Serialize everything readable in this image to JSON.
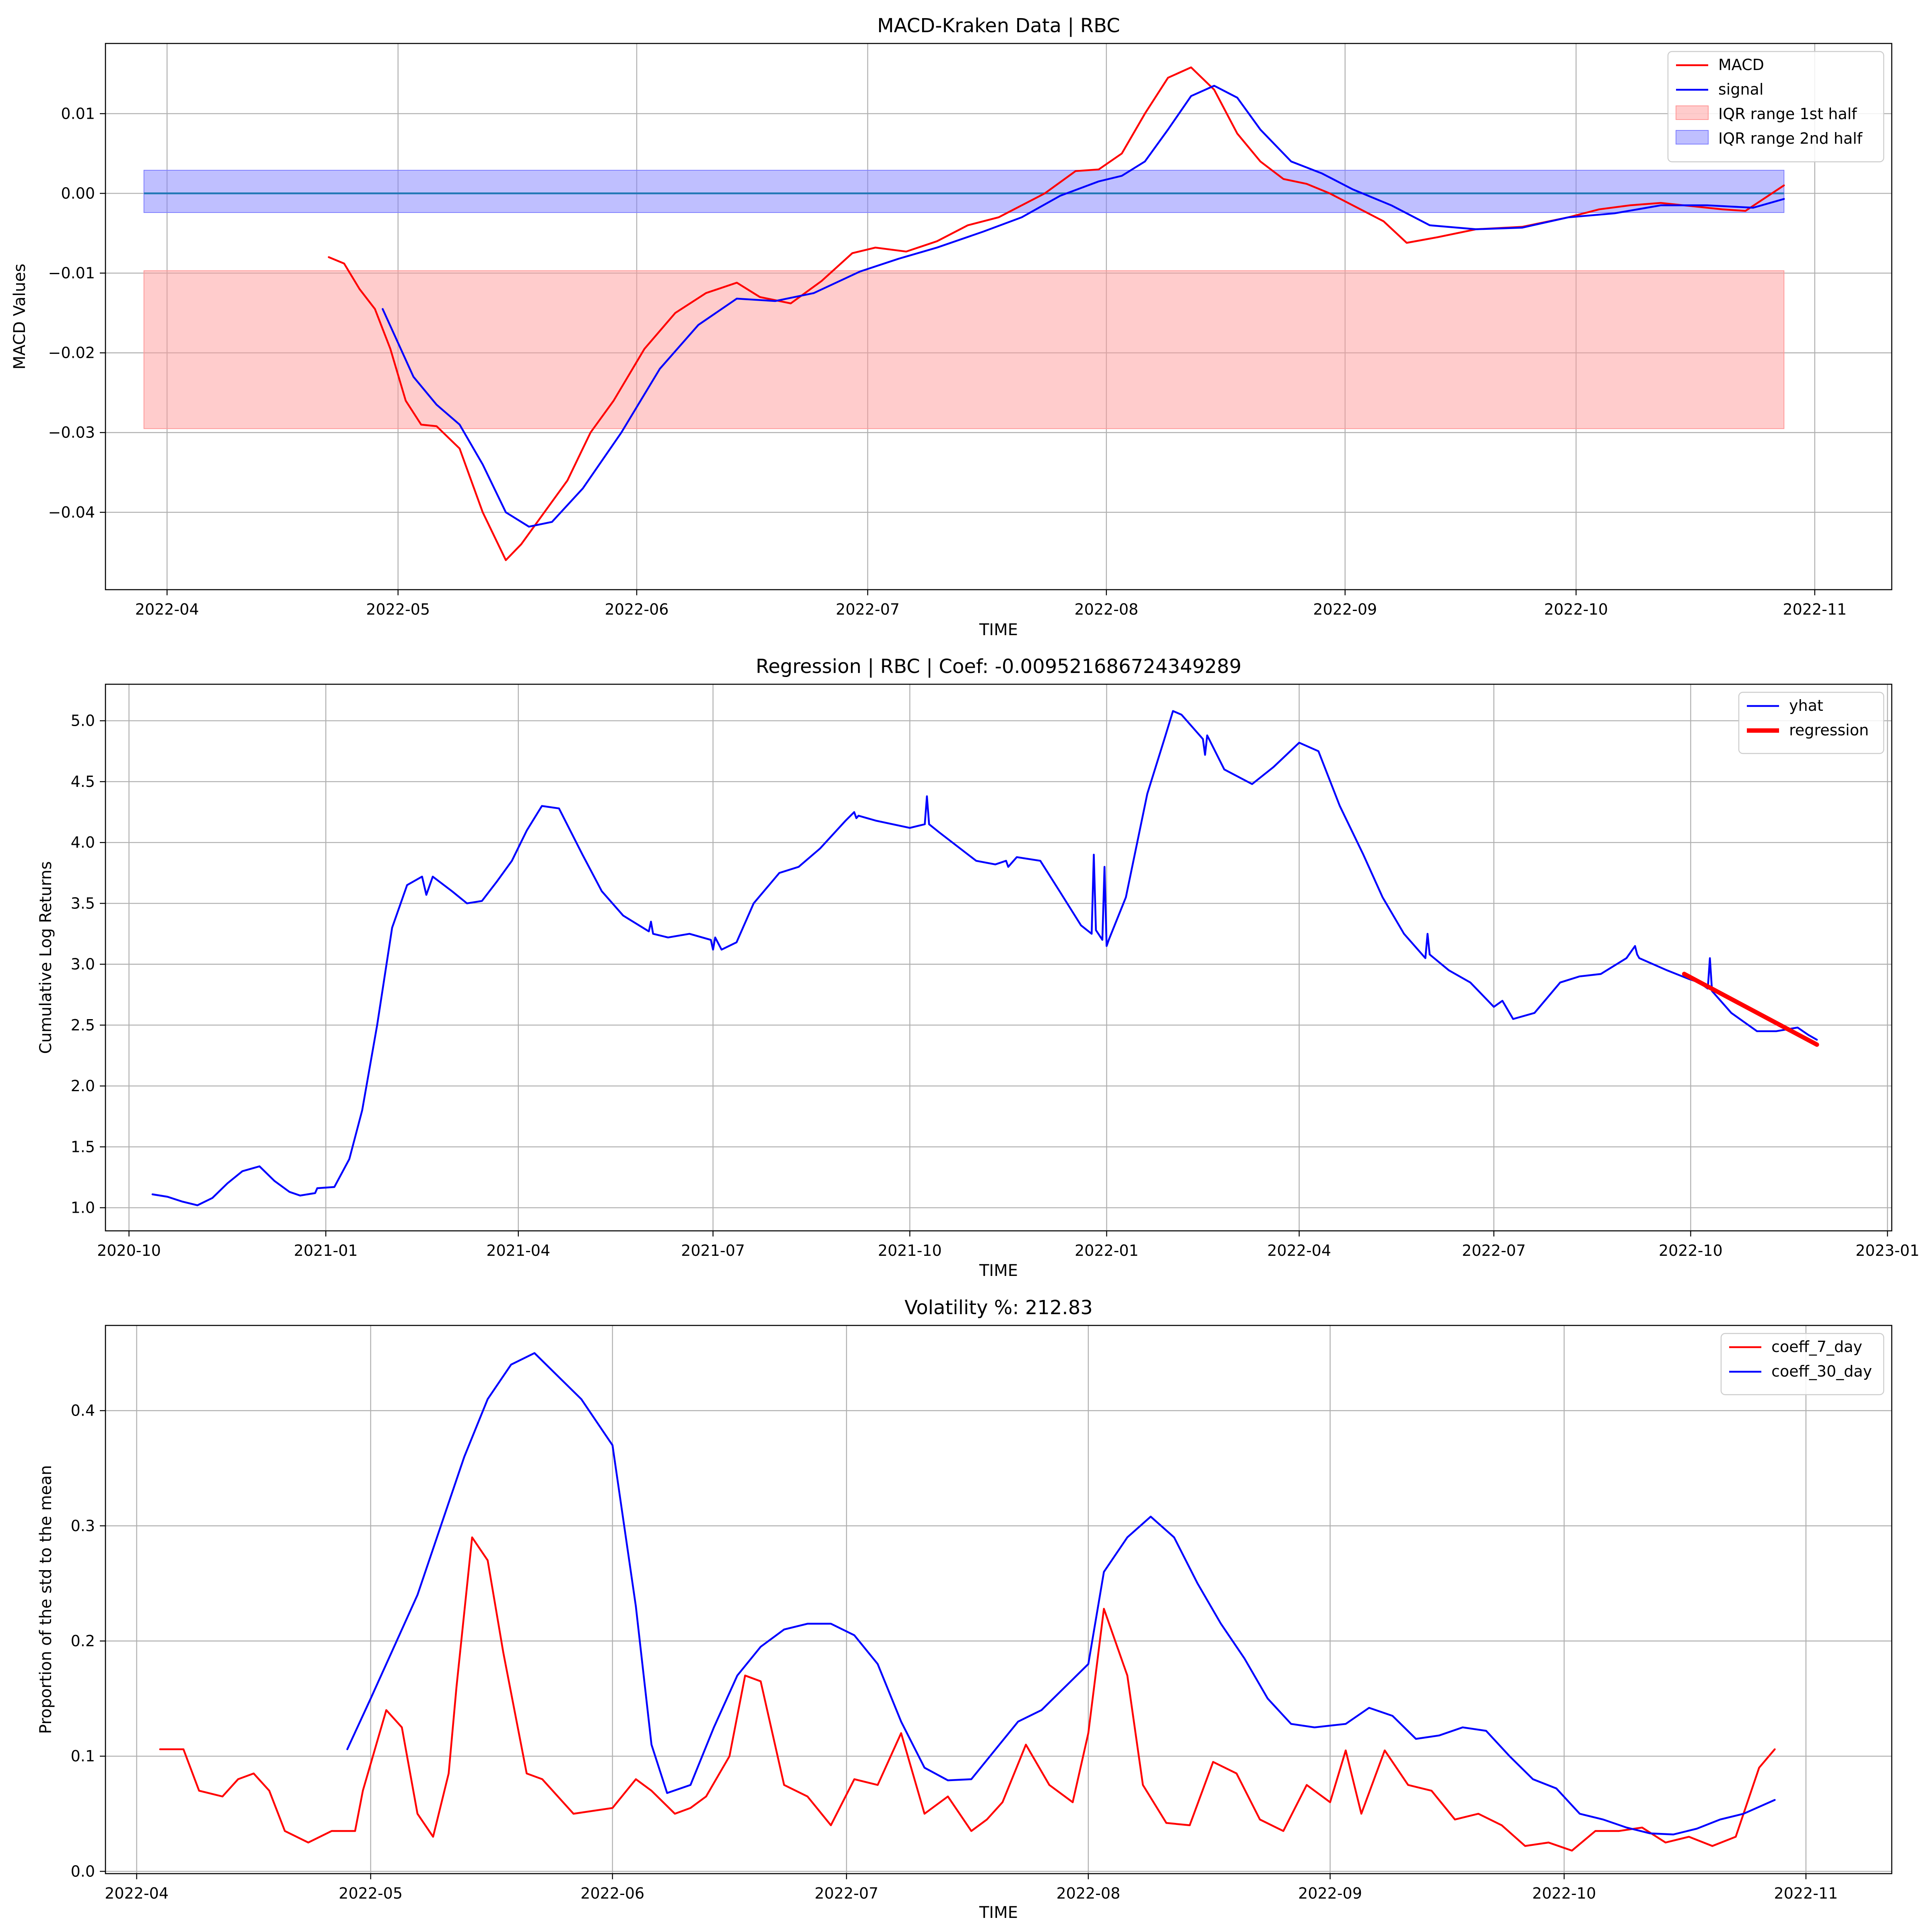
{
  "chart_data": [
    {
      "type": "line",
      "title": "MACD-Kraken Data | RBC",
      "xlabel": "TIME",
      "ylabel": "MACD Values",
      "x_ticks": [
        "2022-04",
        "2022-05",
        "2022-06",
        "2022-07",
        "2022-08",
        "2022-09",
        "2022-10",
        "2022-11"
      ],
      "y_ticks": [
        "0.01",
        "0.00",
        "−0.01",
        "−0.02",
        "−0.03",
        "−0.04"
      ],
      "xlim": [
        "2022-03-24",
        "2022-11-11"
      ],
      "ylim": [
        -0.0497,
        0.0188
      ],
      "grid": true,
      "legend_position": "top-right",
      "bands": [
        {
          "name": "IQR range 1st half",
          "x": [
            "2022-03-29",
            "2022-10-28"
          ],
          "y": [
            -0.0295,
            -0.0097
          ],
          "color": "#ff9999"
        },
        {
          "name": "IQR range 2nd half",
          "x": [
            "2022-03-29",
            "2022-10-28"
          ],
          "y": [
            -0.0024,
            0.0029
          ],
          "color": "#8080ff"
        }
      ],
      "hlines": [
        {
          "y": 0,
          "x": [
            "2022-03-29",
            "2022-10-28"
          ],
          "color": "#1f77b4"
        }
      ],
      "series": [
        {
          "name": "MACD",
          "color": "#ff0000",
          "x": [
            "2022-04-22",
            "2022-04-24",
            "2022-04-26",
            "2022-04-28",
            "2022-04-30",
            "2022-05-02",
            "2022-05-04",
            "2022-05-06",
            "2022-05-09",
            "2022-05-12",
            "2022-05-15",
            "2022-05-17",
            "2022-05-20",
            "2022-05-23",
            "2022-05-26",
            "2022-05-29",
            "2022-06-02",
            "2022-06-06",
            "2022-06-10",
            "2022-06-14",
            "2022-06-17",
            "2022-06-21",
            "2022-06-25",
            "2022-06-29",
            "2022-07-02",
            "2022-07-06",
            "2022-07-10",
            "2022-07-14",
            "2022-07-18",
            "2022-07-20",
            "2022-07-24",
            "2022-07-28",
            "2022-07-31",
            "2022-08-03",
            "2022-08-06",
            "2022-08-09",
            "2022-08-12",
            "2022-08-15",
            "2022-08-18",
            "2022-08-21",
            "2022-08-24",
            "2022-08-27",
            "2022-08-30",
            "2022-09-03",
            "2022-09-06",
            "2022-09-09",
            "2022-09-13",
            "2022-09-18",
            "2022-09-24",
            "2022-09-30",
            "2022-10-04",
            "2022-10-08",
            "2022-10-12",
            "2022-10-16",
            "2022-10-20",
            "2022-10-23",
            "2022-10-28"
          ],
          "y": [
            -0.008,
            -0.0088,
            -0.012,
            -0.0145,
            -0.0195,
            -0.026,
            -0.029,
            -0.0292,
            -0.032,
            -0.04,
            -0.046,
            -0.044,
            -0.04,
            -0.036,
            -0.03,
            -0.026,
            -0.0195,
            -0.015,
            -0.0125,
            -0.0112,
            -0.013,
            -0.0138,
            -0.011,
            -0.0075,
            -0.0068,
            -0.0073,
            -0.006,
            -0.004,
            -0.003,
            -0.002,
            0.0,
            0.0028,
            0.003,
            0.005,
            0.01,
            0.0145,
            0.0158,
            0.013,
            0.0075,
            0.004,
            0.0018,
            0.0012,
            0.0,
            -0.002,
            -0.0035,
            -0.0062,
            -0.0055,
            -0.0045,
            -0.0042,
            -0.003,
            -0.002,
            -0.0015,
            -0.0012,
            -0.0016,
            -0.002,
            -0.0022,
            0.001
          ]
        },
        {
          "name": "signal",
          "color": "#0000ff",
          "x": [
            "2022-04-29",
            "2022-05-03",
            "2022-05-06",
            "2022-05-09",
            "2022-05-12",
            "2022-05-15",
            "2022-05-18",
            "2022-05-21",
            "2022-05-25",
            "2022-05-30",
            "2022-06-04",
            "2022-06-09",
            "2022-06-14",
            "2022-06-19",
            "2022-06-24",
            "2022-06-30",
            "2022-07-05",
            "2022-07-10",
            "2022-07-16",
            "2022-07-21",
            "2022-07-26",
            "2022-07-31",
            "2022-08-03",
            "2022-08-06",
            "2022-08-09",
            "2022-08-12",
            "2022-08-15",
            "2022-08-18",
            "2022-08-21",
            "2022-08-25",
            "2022-08-29",
            "2022-09-02",
            "2022-09-07",
            "2022-09-12",
            "2022-09-18",
            "2022-09-24",
            "2022-09-30",
            "2022-10-06",
            "2022-10-12",
            "2022-10-18",
            "2022-10-24",
            "2022-10-28"
          ],
          "y": [
            -0.0145,
            -0.023,
            -0.0265,
            -0.029,
            -0.034,
            -0.04,
            -0.0418,
            -0.0412,
            -0.037,
            -0.03,
            -0.022,
            -0.0165,
            -0.0132,
            -0.0135,
            -0.0125,
            -0.0098,
            -0.0082,
            -0.0068,
            -0.0048,
            -0.003,
            -0.0003,
            0.0015,
            0.0022,
            0.004,
            0.008,
            0.0122,
            0.0135,
            0.012,
            0.008,
            0.004,
            0.0025,
            0.0005,
            -0.0015,
            -0.004,
            -0.0045,
            -0.0043,
            -0.003,
            -0.0025,
            -0.0015,
            -0.0015,
            -0.0018,
            -0.0007
          ]
        }
      ]
    },
    {
      "type": "line",
      "title": "Regression | RBC | Coef: -0.009521686724349289",
      "xlabel": "TIME",
      "ylabel": "Cumulative Log Returns",
      "x_ticks": [
        "2020-10",
        "2021-01",
        "2021-04",
        "2021-07",
        "2021-10",
        "2022-01",
        "2022-04",
        "2022-07",
        "2022-10",
        "2023-01"
      ],
      "y_ticks": [
        "1.0",
        "1.5",
        "2.0",
        "2.5",
        "3.0",
        "3.5",
        "4.0",
        "4.5",
        "5.0"
      ],
      "xlim": [
        "2020-09-20",
        "2023-01-03"
      ],
      "ylim": [
        0.81,
        5.3
      ],
      "grid": true,
      "legend_position": "top-right",
      "series": [
        {
          "name": "yhat",
          "color": "#0000ff",
          "x": [
            "2020-10-12",
            "2020-10-19",
            "2020-10-26",
            "2020-11-02",
            "2020-11-09",
            "2020-11-16",
            "2020-11-23",
            "2020-12-01",
            "2020-12-08",
            "2020-12-15",
            "2020-12-20",
            "2020-12-27",
            "2020-12-28",
            "2021-01-05",
            "2021-01-12",
            "2021-01-18",
            "2021-01-25",
            "2021-02-01",
            "2021-02-08",
            "2021-02-15",
            "2021-02-17",
            "2021-02-20",
            "2021-03-01",
            "2021-03-08",
            "2021-03-15",
            "2021-03-22",
            "2021-03-29",
            "2021-04-05",
            "2021-04-12",
            "2021-04-20",
            "2021-05-01",
            "2021-05-10",
            "2021-05-20",
            "2021-06-01",
            "2021-06-02",
            "2021-06-03",
            "2021-06-10",
            "2021-06-20",
            "2021-06-30",
            "2021-07-01",
            "2021-07-02",
            "2021-07-05",
            "2021-07-12",
            "2021-07-20",
            "2021-08-01",
            "2021-08-10",
            "2021-08-20",
            "2021-09-01",
            "2021-09-05",
            "2021-09-06",
            "2021-09-07",
            "2021-09-15",
            "2021-10-01",
            "2021-10-08",
            "2021-10-09",
            "2021-10-10",
            "2021-10-15",
            "2021-11-01",
            "2021-11-10",
            "2021-11-15",
            "2021-11-16",
            "2021-11-20",
            "2021-12-01",
            "2021-12-10",
            "2021-12-20",
            "2021-12-25",
            "2021-12-26",
            "2021-12-27",
            "2021-12-30",
            "2021-12-31",
            "2022-01-01",
            "2022-01-02",
            "2022-01-10",
            "2022-01-20",
            "2022-01-28",
            "2022-02-01",
            "2022-02-05",
            "2022-02-10",
            "2022-02-15",
            "2022-02-16",
            "2022-02-17",
            "2022-02-25",
            "2022-03-10",
            "2022-03-20",
            "2022-04-01",
            "2022-04-10",
            "2022-04-20",
            "2022-05-01",
            "2022-05-10",
            "2022-05-20",
            "2022-05-30",
            "2022-05-31",
            "2022-06-01",
            "2022-06-10",
            "2022-06-20",
            "2022-07-01",
            "2022-07-05",
            "2022-07-10",
            "2022-07-20",
            "2022-08-01",
            "2022-08-10",
            "2022-08-20",
            "2022-09-01",
            "2022-09-05",
            "2022-09-06",
            "2022-09-07",
            "2022-09-20",
            "2022-09-30",
            "2022-10-05",
            "2022-10-09",
            "2022-10-10",
            "2022-10-11",
            "2022-10-20",
            "2022-11-01",
            "2022-11-10",
            "2022-11-20",
            "2022-11-25",
            "2022-11-29"
          ],
          "y": [
            1.11,
            1.09,
            1.05,
            1.02,
            1.08,
            1.2,
            1.3,
            1.34,
            1.22,
            1.13,
            1.1,
            1.12,
            1.16,
            1.17,
            1.4,
            1.8,
            2.5,
            3.3,
            3.65,
            3.72,
            3.57,
            3.72,
            3.6,
            3.5,
            3.52,
            3.68,
            3.85,
            4.1,
            4.3,
            4.28,
            3.9,
            3.6,
            3.4,
            3.27,
            3.35,
            3.25,
            3.22,
            3.25,
            3.2,
            3.12,
            3.22,
            3.12,
            3.18,
            3.5,
            3.75,
            3.8,
            3.95,
            4.18,
            4.25,
            4.2,
            4.22,
            4.18,
            4.12,
            4.15,
            4.38,
            4.15,
            4.08,
            3.85,
            3.82,
            3.85,
            3.8,
            3.88,
            3.85,
            3.6,
            3.32,
            3.25,
            3.9,
            3.28,
            3.2,
            3.8,
            3.15,
            3.2,
            3.55,
            4.4,
            4.85,
            5.08,
            5.05,
            4.95,
            4.85,
            4.72,
            4.88,
            4.6,
            4.48,
            4.62,
            4.82,
            4.75,
            4.3,
            3.9,
            3.55,
            3.25,
            3.05,
            3.25,
            3.08,
            2.95,
            2.85,
            2.65,
            2.7,
            2.55,
            2.6,
            2.85,
            2.9,
            2.92,
            3.05,
            3.15,
            3.08,
            3.05,
            2.95,
            2.88,
            2.85,
            2.8,
            3.05,
            2.78,
            2.6,
            2.45,
            2.45,
            2.48,
            2.42,
            2.38
          ]
        },
        {
          "name": "regression",
          "color": "#ff0000",
          "x": [
            "2022-09-28",
            "2022-11-29"
          ],
          "y": [
            2.92,
            2.34
          ]
        }
      ]
    },
    {
      "type": "line",
      "title": "Volatility %: 212.83",
      "xlabel": "TIME",
      "ylabel": "Proportion of the std to the mean",
      "x_ticks": [
        "2022-04",
        "2022-05",
        "2022-06",
        "2022-07",
        "2022-08",
        "2022-09",
        "2022-10",
        "2022-11"
      ],
      "y_ticks": [
        "0.0",
        "0.1",
        "0.2",
        "0.3",
        "0.4"
      ],
      "xlim": [
        "2022-03-28",
        "2022-11-12"
      ],
      "ylim": [
        -0.002,
        0.474
      ],
      "grid": true,
      "legend_position": "top-right",
      "series": [
        {
          "name": "coeff_7_day",
          "color": "#ff0000",
          "x": [
            "2022-04-04",
            "2022-04-07",
            "2022-04-09",
            "2022-04-12",
            "2022-04-14",
            "2022-04-16",
            "2022-04-18",
            "2022-04-20",
            "2022-04-23",
            "2022-04-26",
            "2022-04-29",
            "2022-04-30",
            "2022-05-03",
            "2022-05-05",
            "2022-05-07",
            "2022-05-09",
            "2022-05-11",
            "2022-05-12",
            "2022-05-14",
            "2022-05-16",
            "2022-05-18",
            "2022-05-21",
            "2022-05-23",
            "2022-05-27",
            "2022-06-01",
            "2022-06-04",
            "2022-06-06",
            "2022-06-09",
            "2022-06-11",
            "2022-06-13",
            "2022-06-16",
            "2022-06-18",
            "2022-06-20",
            "2022-06-23",
            "2022-06-26",
            "2022-06-29",
            "2022-07-02",
            "2022-07-05",
            "2022-07-08",
            "2022-07-11",
            "2022-07-14",
            "2022-07-17",
            "2022-07-19",
            "2022-07-21",
            "2022-07-24",
            "2022-07-27",
            "2022-07-30",
            "2022-08-01",
            "2022-08-03",
            "2022-08-06",
            "2022-08-08",
            "2022-08-11",
            "2022-08-14",
            "2022-08-17",
            "2022-08-20",
            "2022-08-23",
            "2022-08-26",
            "2022-08-29",
            "2022-09-01",
            "2022-09-03",
            "2022-09-05",
            "2022-09-08",
            "2022-09-11",
            "2022-09-14",
            "2022-09-17",
            "2022-09-20",
            "2022-09-23",
            "2022-09-26",
            "2022-09-29",
            "2022-10-02",
            "2022-10-05",
            "2022-10-08",
            "2022-10-11",
            "2022-10-14",
            "2022-10-17",
            "2022-10-20",
            "2022-10-23",
            "2022-10-26",
            "2022-10-28"
          ],
          "y": [
            0.106,
            0.106,
            0.07,
            0.065,
            0.08,
            0.085,
            0.07,
            0.035,
            0.025,
            0.035,
            0.035,
            0.07,
            0.14,
            0.125,
            0.05,
            0.03,
            0.085,
            0.16,
            0.29,
            0.27,
            0.19,
            0.085,
            0.08,
            0.05,
            0.055,
            0.08,
            0.07,
            0.05,
            0.055,
            0.065,
            0.1,
            0.17,
            0.165,
            0.075,
            0.065,
            0.04,
            0.08,
            0.075,
            0.12,
            0.05,
            0.065,
            0.035,
            0.045,
            0.06,
            0.11,
            0.075,
            0.06,
            0.12,
            0.228,
            0.17,
            0.075,
            0.042,
            0.04,
            0.095,
            0.085,
            0.045,
            0.035,
            0.075,
            0.06,
            0.105,
            0.05,
            0.105,
            0.075,
            0.07,
            0.045,
            0.05,
            0.04,
            0.022,
            0.025,
            0.018,
            0.035,
            0.035,
            0.038,
            0.025,
            0.03,
            0.022,
            0.03,
            0.09,
            0.106
          ]
        },
        {
          "name": "coeff_30_day",
          "color": "#0000ff",
          "x": [
            "2022-04-28",
            "2022-05-01",
            "2022-05-04",
            "2022-05-07",
            "2022-05-10",
            "2022-05-13",
            "2022-05-16",
            "2022-05-19",
            "2022-05-22",
            "2022-05-25",
            "2022-05-28",
            "2022-06-01",
            "2022-06-04",
            "2022-06-06",
            "2022-06-08",
            "2022-06-11",
            "2022-06-14",
            "2022-06-17",
            "2022-06-20",
            "2022-06-23",
            "2022-06-26",
            "2022-06-29",
            "2022-07-02",
            "2022-07-05",
            "2022-07-08",
            "2022-07-11",
            "2022-07-14",
            "2022-07-17",
            "2022-07-20",
            "2022-07-23",
            "2022-07-26",
            "2022-07-29",
            "2022-08-01",
            "2022-08-03",
            "2022-08-06",
            "2022-08-09",
            "2022-08-12",
            "2022-08-15",
            "2022-08-18",
            "2022-08-21",
            "2022-08-24",
            "2022-08-27",
            "2022-08-30",
            "2022-09-03",
            "2022-09-06",
            "2022-09-09",
            "2022-09-12",
            "2022-09-15",
            "2022-09-18",
            "2022-09-21",
            "2022-09-24",
            "2022-09-27",
            "2022-09-30",
            "2022-10-03",
            "2022-10-06",
            "2022-10-09",
            "2022-10-12",
            "2022-10-15",
            "2022-10-18",
            "2022-10-21",
            "2022-10-24",
            "2022-10-28"
          ],
          "y": [
            0.106,
            0.15,
            0.195,
            0.24,
            0.3,
            0.36,
            0.41,
            0.44,
            0.45,
            0.43,
            0.41,
            0.37,
            0.23,
            0.11,
            0.068,
            0.075,
            0.125,
            0.17,
            0.195,
            0.21,
            0.215,
            0.215,
            0.205,
            0.18,
            0.13,
            0.09,
            0.079,
            0.08,
            0.105,
            0.13,
            0.14,
            0.16,
            0.18,
            0.26,
            0.29,
            0.308,
            0.29,
            0.25,
            0.215,
            0.185,
            0.15,
            0.128,
            0.125,
            0.128,
            0.142,
            0.135,
            0.115,
            0.118,
            0.125,
            0.122,
            0.1,
            0.08,
            0.072,
            0.05,
            0.045,
            0.038,
            0.033,
            0.032,
            0.037,
            0.045,
            0.05,
            0.062
          ]
        }
      ]
    }
  ]
}
